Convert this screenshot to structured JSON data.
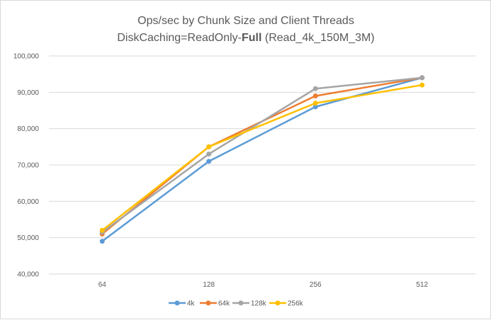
{
  "chart_data": {
    "type": "line",
    "title_line1": "Ops/sec by Chunk Size and Client Threads",
    "title_line2_prefix": "DiskCaching=ReadOnly-",
    "title_line2_bold": "Full",
    "title_line2_suffix": " (Read_4k_150M_3M)",
    "categories": [
      "64",
      "128",
      "256",
      "512"
    ],
    "ylim": [
      40000,
      100000
    ],
    "yticks": [
      40000,
      50000,
      60000,
      70000,
      80000,
      90000,
      100000
    ],
    "ytick_labels": [
      "40,000",
      "50,000",
      "60,000",
      "70,000",
      "80,000",
      "90,000",
      "100,000"
    ],
    "grid": true,
    "legend_position": "bottom",
    "series": [
      {
        "name": "4k",
        "color": "#5b9bd5",
        "values": [
          49000,
          71000,
          86000,
          94000
        ]
      },
      {
        "name": "64k",
        "color": "#ed7d31",
        "values": [
          51000,
          75000,
          89000,
          94000
        ]
      },
      {
        "name": "128k",
        "color": "#a5a5a5",
        "values": [
          51500,
          73000,
          91000,
          94000
        ]
      },
      {
        "name": "256k",
        "color": "#ffc000",
        "values": [
          52000,
          75000,
          87000,
          92000
        ]
      }
    ]
  }
}
